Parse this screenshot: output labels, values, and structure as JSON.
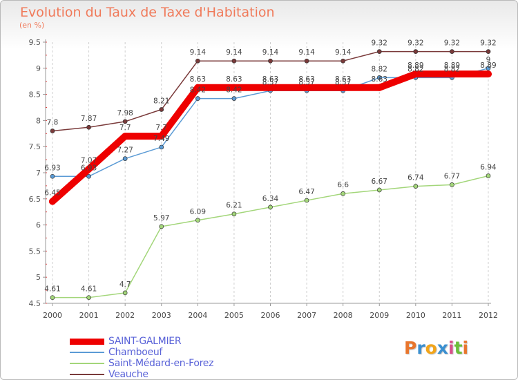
{
  "chart_data": {
    "type": "line",
    "title": "Evolution du Taux de Taxe d'Habitation",
    "unit_label": "(en %)",
    "x": [
      "2000",
      "2001",
      "2002",
      "2003",
      "2004",
      "2005",
      "2006",
      "2007",
      "2008",
      "2009",
      "2010",
      "2011",
      "2012"
    ],
    "yticks": [
      "4.5",
      "5",
      "5.5",
      "6",
      "6.5",
      "7",
      "7.5",
      "8",
      "8.5",
      "9",
      "9.5"
    ],
    "ylim": [
      4.5,
      9.5
    ],
    "grid": "vertical dashed",
    "legend_position": "bottom-left",
    "series": [
      {
        "name": "SAINT-GALMIER",
        "color": "#ee0000",
        "width": 10,
        "marker": 5,
        "values": [
          6.45,
          7.07,
          7.7,
          7.7,
          8.63,
          8.63,
          8.63,
          8.63,
          8.63,
          8.63,
          8.89,
          8.89,
          8.89
        ],
        "labels": [
          "6.45",
          "7.07",
          "7.7",
          "7.7",
          "8.63",
          "8.63",
          "8.63",
          "8.63",
          "8.63",
          "8.63",
          "8.89",
          "8.89",
          "8.89"
        ]
      },
      {
        "name": "Chamboeuf",
        "color": "#5b9bd5",
        "width": 1.5,
        "marker": 3,
        "values": [
          6.93,
          6.93,
          7.27,
          7.49,
          8.42,
          8.42,
          8.57,
          8.57,
          8.57,
          8.82,
          8.82,
          8.82,
          9.0
        ],
        "labels": [
          "6.93",
          "6.93",
          "7.27",
          "7.49",
          "8.42",
          "8.42",
          "8.57",
          "8.57",
          "8.57",
          "8.82",
          "8.82",
          "8.82",
          "9"
        ]
      },
      {
        "name": "Saint-Médard-en-Forez",
        "color": "#a3d67a",
        "width": 1.5,
        "marker": 3,
        "values": [
          4.61,
          4.61,
          4.7,
          5.97,
          6.09,
          6.21,
          6.34,
          6.47,
          6.6,
          6.67,
          6.74,
          6.77,
          6.94
        ],
        "labels": [
          "4.61",
          "4.61",
          "4.7",
          "5.97",
          "6.09",
          "6.21",
          "6.34",
          "6.47",
          "6.6",
          "6.67",
          "6.74",
          "6.77",
          "6.94"
        ]
      },
      {
        "name": "Veauche",
        "color": "#7a3a3a",
        "width": 1.5,
        "marker": 3,
        "values": [
          7.8,
          7.87,
          7.98,
          8.21,
          9.14,
          9.14,
          9.14,
          9.14,
          9.14,
          9.32,
          9.32,
          9.32,
          9.32
        ],
        "labels": [
          "7.8",
          "7.87",
          "7.98",
          "8.21",
          "9.14",
          "9.14",
          "9.14",
          "9.14",
          "9.14",
          "9.32",
          "9.32",
          "9.32",
          "9.32"
        ]
      }
    ]
  },
  "logo": {
    "text": "Proxiti",
    "colors": [
      "#e8762d",
      "#3a8fd0",
      "#f2a51a",
      "#3a8fd0",
      "#d94f8a",
      "#6bbf3a",
      "#e8762d"
    ]
  }
}
